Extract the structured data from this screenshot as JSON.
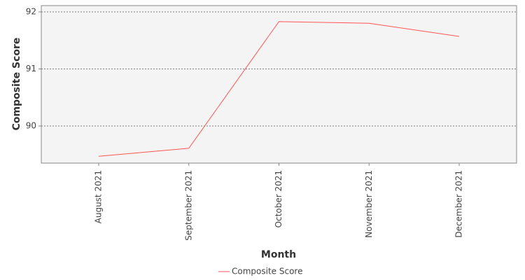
{
  "chart_data": {
    "type": "line",
    "x_label": "Month",
    "y_label": "Composite Score",
    "categories": [
      "August 2021",
      "September 2021",
      "October 2021",
      "November 2021",
      "December 2021"
    ],
    "series": [
      {
        "name": "Composite Score",
        "color": "#ff5555",
        "values": [
          89.47,
          89.61,
          91.83,
          91.8,
          91.57
        ]
      }
    ],
    "ylim": [
      89.35,
      92.11
    ],
    "yticks": [
      90,
      91,
      92
    ],
    "grid": true,
    "legend": "bottom"
  }
}
